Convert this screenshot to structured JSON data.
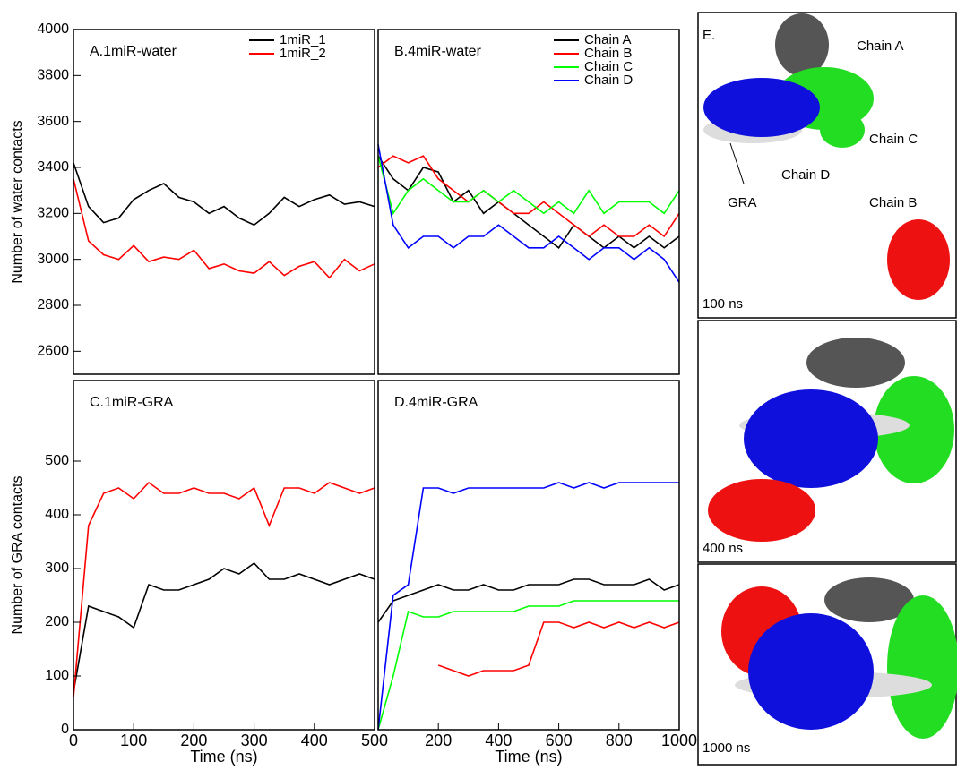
{
  "chart_data": [
    {
      "type": "line",
      "title": "A.1miR-water",
      "ylabel": "Number of water contacts",
      "legend": "upper right",
      "x": [
        0,
        25,
        50,
        75,
        100,
        125,
        150,
        175,
        200,
        225,
        250,
        275,
        300,
        325,
        350,
        375,
        400,
        425,
        450,
        475,
        500
      ],
      "xlim": [
        0,
        500
      ],
      "ylim": [
        2500,
        4000
      ],
      "yticks": [
        2600,
        2800,
        3000,
        3200,
        3400,
        3600,
        3800,
        4000
      ],
      "series": [
        {
          "name": "1miR_1",
          "color": "#000000",
          "values": [
            3420,
            3230,
            3160,
            3180,
            3260,
            3300,
            3330,
            3270,
            3250,
            3200,
            3230,
            3180,
            3150,
            3200,
            3270,
            3230,
            3260,
            3280,
            3240,
            3250,
            3230
          ]
        },
        {
          "name": "1miR_2",
          "color": "#ff0000",
          "values": [
            3350,
            3080,
            3020,
            3000,
            3060,
            2990,
            3010,
            3000,
            3040,
            2960,
            2980,
            2950,
            2940,
            2990,
            2930,
            2970,
            2990,
            2920,
            3000,
            2950,
            2980
          ]
        }
      ]
    },
    {
      "type": "line",
      "title": "B.4miR-water",
      "legend": "upper right",
      "x": [
        0,
        50,
        100,
        150,
        200,
        250,
        300,
        350,
        400,
        450,
        500,
        550,
        600,
        650,
        700,
        750,
        800,
        850,
        900,
        950,
        1000
      ],
      "xlim": [
        0,
        1000
      ],
      "ylim": [
        2500,
        4000
      ],
      "series": [
        {
          "name": "Chain A",
          "color": "#000000",
          "values": [
            3450,
            3350,
            3300,
            3400,
            3380,
            3250,
            3300,
            3200,
            3250,
            3200,
            3150,
            3100,
            3050,
            3150,
            3100,
            3050,
            3100,
            3050,
            3100,
            3050,
            3100
          ]
        },
        {
          "name": "Chain B",
          "color": "#ff0000",
          "values": [
            3400,
            3450,
            3420,
            3450,
            3350,
            3300,
            3250,
            3300,
            3250,
            3200,
            3200,
            3250,
            3200,
            3150,
            3100,
            3150,
            3100,
            3100,
            3150,
            3100,
            3200
          ]
        },
        {
          "name": "Chain C",
          "color": "#00ff00",
          "values": [
            3450,
            3200,
            3300,
            3350,
            3300,
            3250,
            3250,
            3300,
            3250,
            3300,
            3250,
            3200,
            3250,
            3200,
            3300,
            3200,
            3250,
            3250,
            3250,
            3200,
            3300
          ]
        },
        {
          "name": "Chain D",
          "color": "#0000ff",
          "values": [
            3500,
            3150,
            3050,
            3100,
            3100,
            3050,
            3100,
            3100,
            3150,
            3100,
            3050,
            3050,
            3100,
            3050,
            3000,
            3050,
            3050,
            3000,
            3050,
            3000,
            2900
          ]
        }
      ]
    },
    {
      "type": "line",
      "title": "C.1miR-GRA",
      "ylabel": "Number of GRA contacts",
      "xlabel": "Time (ns)",
      "x": [
        0,
        25,
        50,
        75,
        100,
        125,
        150,
        175,
        200,
        225,
        250,
        275,
        300,
        325,
        350,
        375,
        400,
        425,
        450,
        475,
        500
      ],
      "xlim": [
        0,
        500
      ],
      "xticks": [
        0,
        100,
        200,
        300,
        400,
        500
      ],
      "ylim": [
        0,
        650
      ],
      "yticks": [
        0,
        100,
        200,
        300,
        400,
        500
      ],
      "series": [
        {
          "color": "#000000",
          "values": [
            70,
            230,
            220,
            210,
            190,
            270,
            260,
            260,
            270,
            280,
            300,
            290,
            310,
            280,
            280,
            290,
            280,
            270,
            280,
            290,
            280
          ]
        },
        {
          "color": "#ff0000",
          "values": [
            60,
            380,
            440,
            450,
            430,
            460,
            440,
            440,
            450,
            440,
            440,
            430,
            450,
            380,
            450,
            450,
            440,
            460,
            450,
            440,
            450
          ]
        }
      ]
    },
    {
      "type": "line",
      "title": "D.4miR-GRA",
      "xlabel": "Time (ns)",
      "x": [
        0,
        50,
        100,
        150,
        200,
        250,
        300,
        350,
        400,
        450,
        500,
        550,
        600,
        650,
        700,
        750,
        800,
        850,
        900,
        950,
        1000
      ],
      "xlim": [
        0,
        1000
      ],
      "xticks": [
        200,
        400,
        600,
        800,
        1000
      ],
      "ylim": [
        0,
        650
      ],
      "series": [
        {
          "color": "#000000",
          "values": [
            200,
            240,
            250,
            260,
            270,
            260,
            260,
            270,
            260,
            260,
            270,
            270,
            270,
            280,
            280,
            270,
            270,
            270,
            280,
            260,
            270
          ]
        },
        {
          "color": "#ff0000",
          "values": [
            null,
            null,
            null,
            null,
            120,
            110,
            100,
            110,
            110,
            110,
            120,
            200,
            200,
            190,
            200,
            190,
            200,
            190,
            200,
            190,
            200
          ]
        },
        {
          "color": "#00ff00",
          "values": [
            0,
            100,
            220,
            210,
            210,
            220,
            220,
            220,
            220,
            220,
            230,
            230,
            230,
            240,
            240,
            240,
            240,
            240,
            240,
            240,
            240
          ]
        },
        {
          "color": "#0000ff",
          "values": [
            0,
            250,
            270,
            450,
            450,
            440,
            450,
            450,
            450,
            450,
            450,
            450,
            460,
            450,
            460,
            450,
            460,
            460,
            460,
            460,
            460
          ]
        }
      ]
    }
  ],
  "panel_e": {
    "title": "E.",
    "labels": [
      "Chain A",
      "Chain C",
      "Chain D",
      "GRA",
      "Chain B"
    ],
    "times": [
      "100 ns",
      "400 ns",
      "1000 ns"
    ]
  }
}
